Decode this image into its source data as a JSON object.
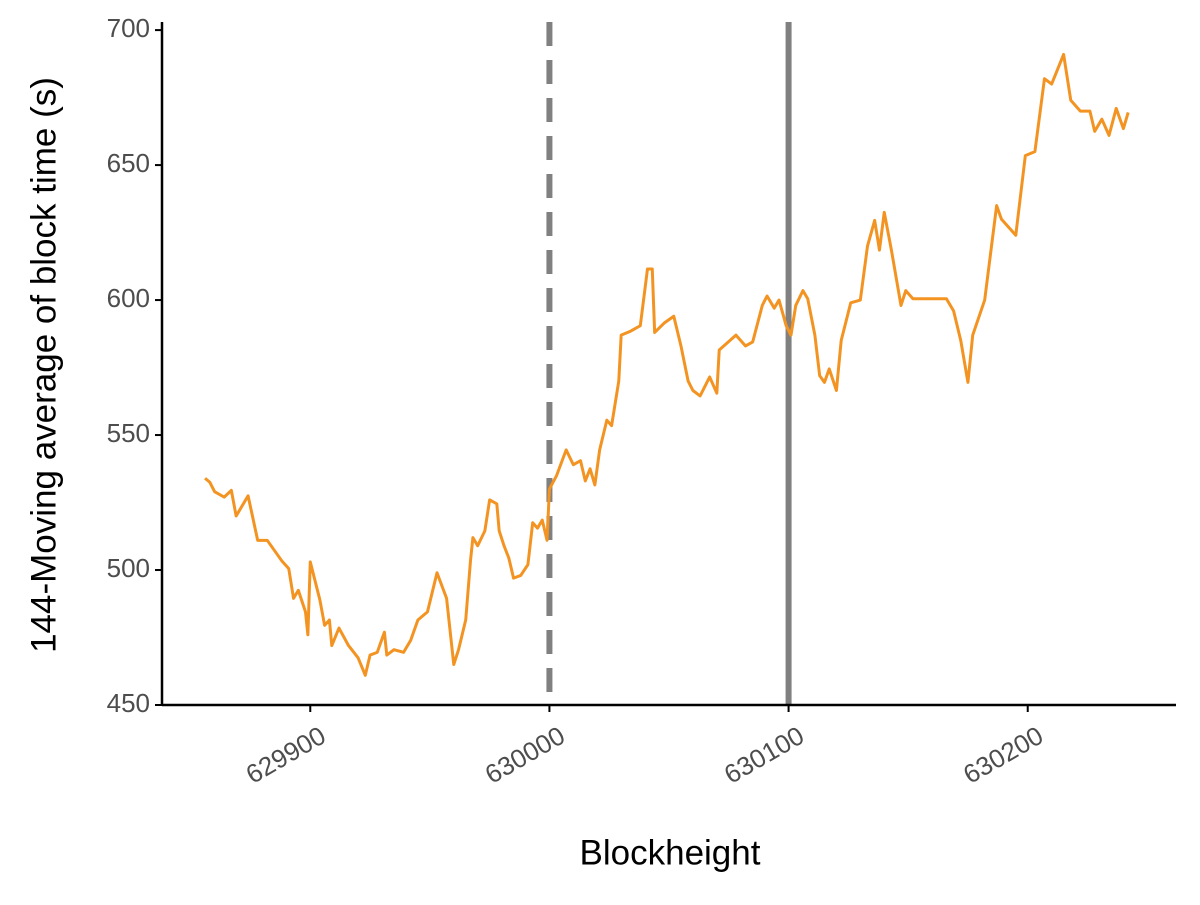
{
  "chart_data": {
    "type": "line",
    "x_label": "Blockheight",
    "y_label": "144-Moving average of block time (s)",
    "color": "#f39422",
    "x": [
      629856,
      629858,
      629860,
      629864,
      629867,
      629869,
      629874,
      629878,
      629882,
      629888,
      629891,
      629893,
      629895,
      629898,
      629899,
      629900,
      629904,
      629906,
      629908,
      629909,
      629912,
      629916,
      629920,
      629923,
      629925,
      629928,
      629931,
      629932,
      629935,
      629939,
      629942,
      629945,
      629949,
      629953,
      629957,
      629960,
      629962,
      629965,
      629967,
      629968,
      629970,
      629973,
      629975,
      629978,
      629979,
      629981,
      629983,
      629985,
      629988,
      629991,
      629993,
      629995,
      629997,
      629999,
      630000,
      630003,
      630007,
      630010,
      630013,
      630015,
      630017,
      630019,
      630021,
      630024,
      630026,
      630029,
      630030,
      630034,
      630038,
      630041,
      630043,
      630044,
      630048,
      630052,
      630055,
      630058,
      630060,
      630063,
      630067,
      630070,
      630071,
      630078,
      630082,
      630085,
      630089,
      630091,
      630094,
      630096,
      630099,
      630101,
      630103,
      630106,
      630108,
      630111,
      630113,
      630115,
      630117,
      630120,
      630122,
      630126,
      630130,
      630133,
      630136,
      630138,
      630140,
      630143,
      630147,
      630149,
      630152,
      630159,
      630166,
      630169,
      630172,
      630175,
      630177,
      630182,
      630187,
      630189,
      630195,
      630199,
      630203,
      630207,
      630210,
      630215,
      630218,
      630222,
      630226,
      630228,
      630231,
      630234,
      630237,
      630240,
      630242
    ],
    "values": [
      534,
      532.5,
      529,
      527,
      529.5,
      520,
      527.5,
      511,
      511,
      503.5,
      500.5,
      489.5,
      492.5,
      484.5,
      476,
      503,
      489,
      479.5,
      481.5,
      472,
      478.5,
      472,
      467.5,
      461,
      468.5,
      469.5,
      477,
      468.5,
      470.5,
      469.5,
      474,
      481.5,
      484.5,
      499,
      489.5,
      465,
      470.5,
      481.5,
      503.5,
      512,
      509,
      514.5,
      526,
      524.5,
      514.5,
      509,
      504.5,
      497,
      498,
      502,
      517.5,
      515.5,
      518.5,
      511,
      530,
      535,
      544.5,
      539,
      540.5,
      533,
      537.5,
      531.5,
      544.5,
      555.5,
      553.5,
      570,
      587,
      588.5,
      590.5,
      611.5,
      611.5,
      588,
      591.5,
      594,
      583,
      570,
      566.5,
      564.5,
      571.5,
      565.5,
      581.5,
      587,
      583,
      584.5,
      598,
      601.5,
      597,
      600,
      590.5,
      587,
      598,
      603.5,
      600.5,
      587,
      572,
      569.5,
      574.5,
      566.5,
      585,
      599,
      600,
      620,
      629.5,
      618.5,
      632.5,
      618.5,
      598,
      603.5,
      600.5,
      600.5,
      600.5,
      596,
      585,
      569.5,
      587,
      600,
      635,
      630,
      624,
      653.5,
      655,
      682,
      680,
      691,
      674,
      670,
      670,
      662.5,
      667,
      661,
      671,
      663.5,
      669.5
    ],
    "vlines": [
      {
        "x": 630000,
        "style": "dashed",
        "color": "#808080"
      },
      {
        "x": 630100,
        "style": "solid",
        "color": "#808080"
      }
    ],
    "xlim": [
      629838,
      630262
    ],
    "xticks": [
      629900,
      630000,
      630100,
      630200
    ],
    "ylim": [
      450,
      703
    ],
    "yticks": [
      450,
      500,
      550,
      600,
      650,
      700
    ]
  }
}
